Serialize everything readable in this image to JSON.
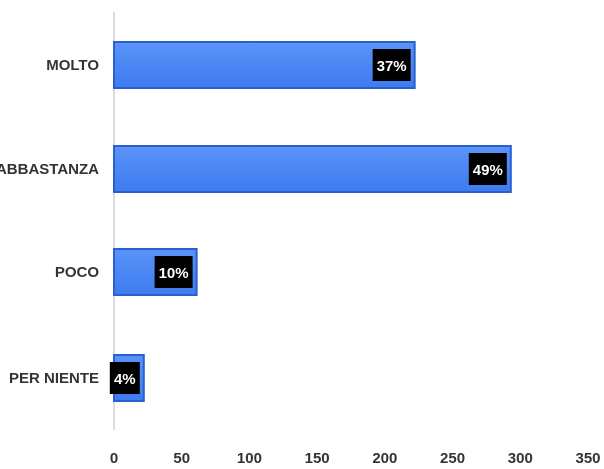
{
  "chart_data": {
    "type": "bar",
    "orientation": "horizontal",
    "categories": [
      "MOLTO",
      "ABBASTANZA",
      "POCO",
      "PER NIENTE"
    ],
    "values": [
      222,
      293,
      61,
      22
    ],
    "data_labels": [
      "37%",
      "49%",
      "10%",
      "4%"
    ],
    "xlim": [
      0,
      350
    ],
    "x_ticks": [
      "0",
      "50",
      "100",
      "150",
      "200",
      "250",
      "300",
      "350"
    ],
    "grid": false,
    "legend": "none",
    "colors": {
      "bar_fill": "#3d7bf0",
      "bar_fill_light": "#5b93f7",
      "bar_border": "#2a5fd0",
      "label_box": "#000000",
      "label_text": "#ffffff",
      "axis": "#d0d0d0",
      "text": "#333333"
    }
  }
}
